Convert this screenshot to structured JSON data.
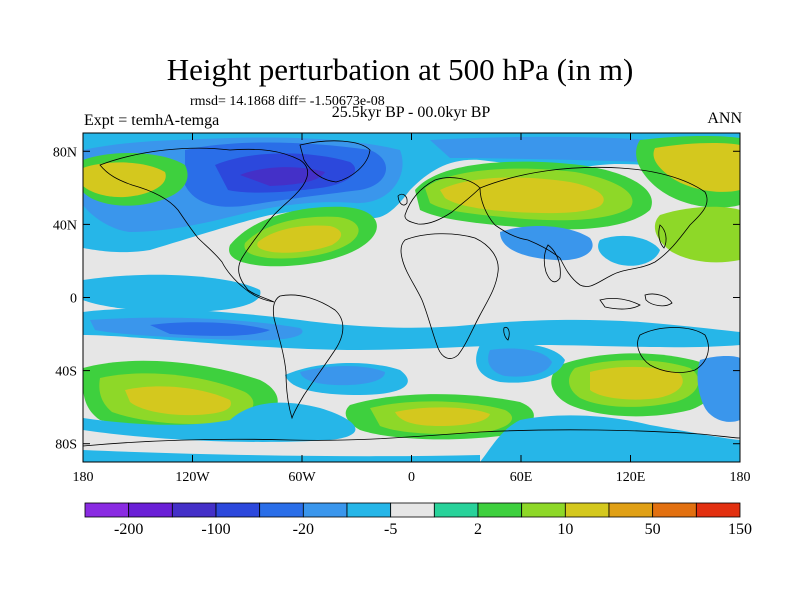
{
  "title": "Height perturbation at 500 hPa (in m)",
  "stats": "rmsd= 14.1868 diff= -1.50673e-08",
  "left_label": "Expt = temhA-temga",
  "center_label": "25.5kyr BP - 00.0kyr BP",
  "right_label": "ANN",
  "map": {
    "lon_range": [
      -180,
      180
    ],
    "lat_range": [
      -90,
      90
    ],
    "x_ticks": [
      {
        "lon": -180,
        "label": "180"
      },
      {
        "lon": -120,
        "label": "120W"
      },
      {
        "lon": -60,
        "label": "60W"
      },
      {
        "lon": 0,
        "label": "0"
      },
      {
        "lon": 60,
        "label": "60E"
      },
      {
        "lon": 120,
        "label": "120E"
      },
      {
        "lon": 180,
        "label": "180"
      }
    ],
    "y_ticks": [
      {
        "lat": 80,
        "label": "80N"
      },
      {
        "lat": 40,
        "label": "40N"
      },
      {
        "lat": 0,
        "label": "0"
      },
      {
        "lat": -40,
        "label": "40S"
      },
      {
        "lat": -80,
        "label": "80S"
      }
    ]
  },
  "colorbar": {
    "colors": [
      "#8a2be2",
      "#6a1fd6",
      "#4430c8",
      "#2c48dc",
      "#2a6ee8",
      "#3a96ec",
      "#26b6e8",
      "#e6e6e6",
      "#28d29a",
      "#3ed03e",
      "#8ed828",
      "#d4c81e",
      "#e0a016",
      "#e27010",
      "#e23010"
    ],
    "labels": [
      {
        "index": 1,
        "text": "-200"
      },
      {
        "index": 3,
        "text": "-100"
      },
      {
        "index": 5,
        "text": "-20"
      },
      {
        "index": 7,
        "text": "-5"
      },
      {
        "index": 9,
        "text": "2"
      },
      {
        "index": 11,
        "text": "10"
      },
      {
        "index": 13,
        "text": "50"
      },
      {
        "index": 15,
        "text": "150"
      }
    ]
  }
}
